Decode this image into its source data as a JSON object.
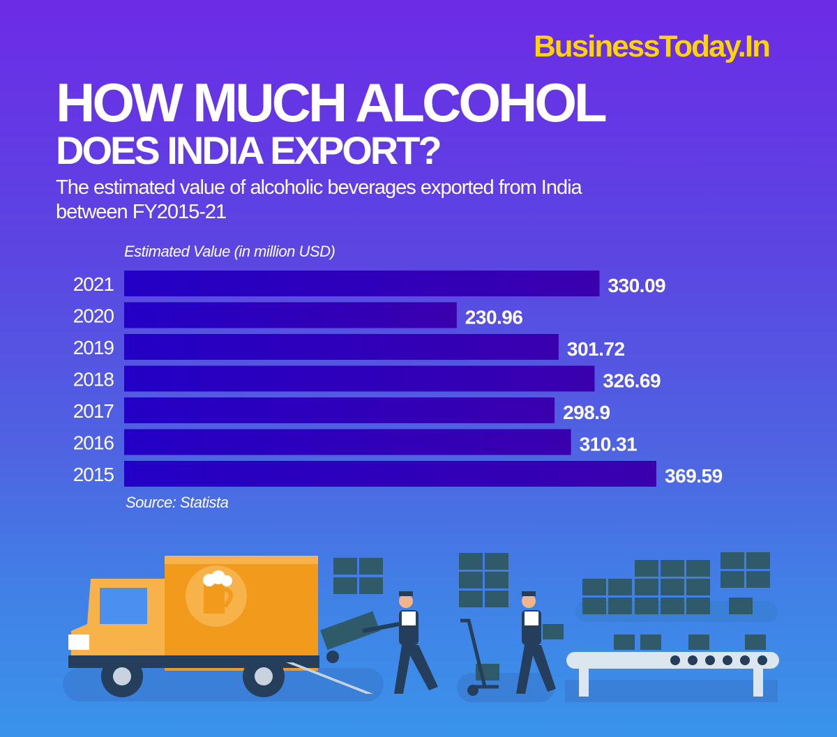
{
  "brand": "BusinessToday.In",
  "title_line1": "HOW MUCH ALCOHOL",
  "title_line2": "DOES INDIA EXPORT?",
  "subtitle": "The estimated value of alcoholic beverages exported from India between FY2015-21",
  "source": "Source: Statista",
  "colors": {
    "bar_start": "#2300c6",
    "bar_end": "#3a00ae",
    "brand": "#ffd400",
    "truck": "#f29a1c"
  },
  "chart_data": {
    "type": "bar",
    "orientation": "horizontal",
    "title": "",
    "xlabel": "Estimated Value (in million USD)",
    "ylabel": "",
    "categories": [
      "2021",
      "2020",
      "2019",
      "2018",
      "2017",
      "2016",
      "2015"
    ],
    "values": [
      330.09,
      230.96,
      301.72,
      326.69,
      298.9,
      310.31,
      369.59
    ],
    "value_labels": [
      "330.09",
      "230.96",
      "301.72",
      "326.69",
      "298.9",
      "310.31",
      "369.59"
    ],
    "xlim": [
      0,
      369.59
    ],
    "grid": false,
    "legend": "none"
  }
}
